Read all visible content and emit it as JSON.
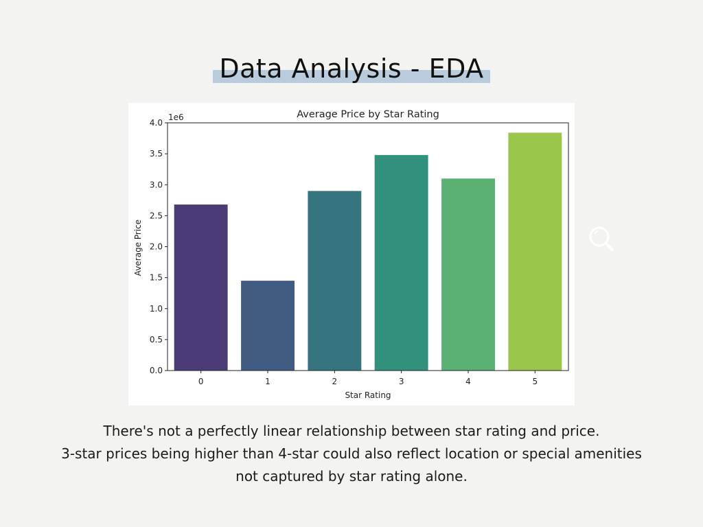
{
  "slide": {
    "title": "Data Analysis - EDA",
    "caption_lines": [
      "There's not a perfectly linear relationship between star rating and price.",
      "3-star prices being higher than 4-star could also reflect location or special amenities not captured by star rating alone."
    ],
    "highlight_color": "#b9cbdd",
    "background_color": "#f3f3f1",
    "search_icon": "magnifier-icon"
  },
  "chart_data": {
    "type": "bar",
    "title": "Average Price by Star Rating",
    "xlabel": "Star Rating",
    "ylabel": "Average Price",
    "y_offset_label": "1e6",
    "categories": [
      "0",
      "1",
      "2",
      "3",
      "4",
      "5"
    ],
    "values": [
      2680000,
      1450000,
      2900000,
      3480000,
      3100000,
      3840000
    ],
    "ylim": [
      0,
      4000000
    ],
    "yticks": [
      0,
      500000,
      1000000,
      1500000,
      2000000,
      2500000,
      3000000,
      3500000,
      4000000
    ],
    "ytick_labels": [
      "0.0",
      "0.5",
      "1.0",
      "1.5",
      "2.0",
      "2.5",
      "3.0",
      "3.5",
      "4.0"
    ],
    "colors": [
      "#4a3b76",
      "#415c82",
      "#36757f",
      "#31917d",
      "#5bb174",
      "#9ac64b"
    ],
    "grid": false,
    "legend": "none"
  }
}
